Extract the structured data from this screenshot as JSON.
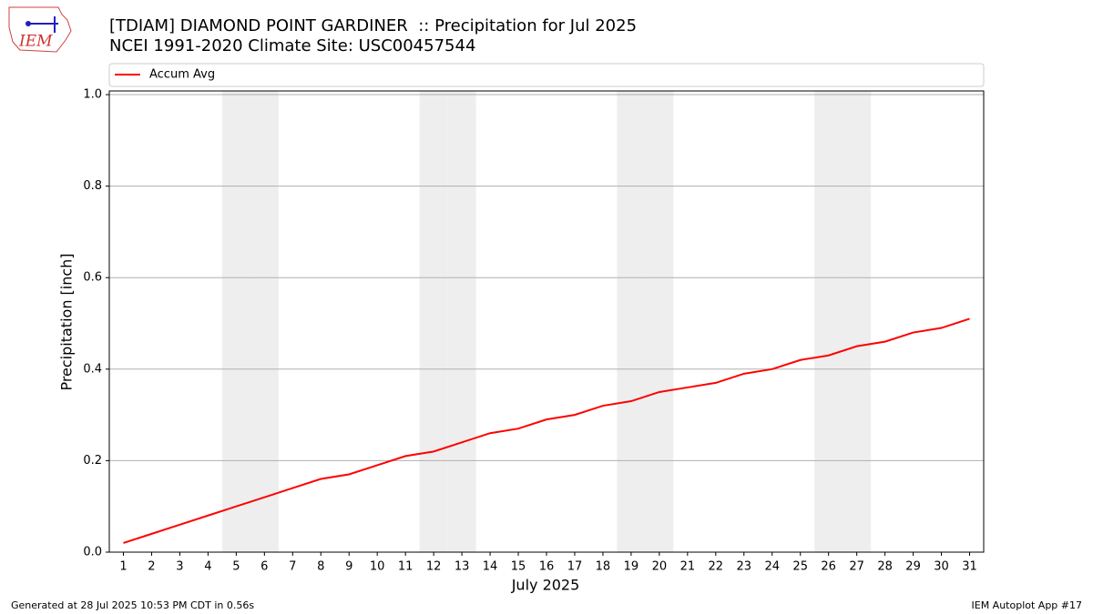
{
  "chart_data": {
    "type": "line",
    "title": "[TDIAM] DIAMOND POINT GARDINER  :: Precipitation for Jul 2025",
    "subtitle": "NCEI 1991-2020 Climate Site: USC00457544",
    "x_label": "July 2025",
    "y_label": "Precipitation [inch]",
    "x": [
      1,
      2,
      3,
      4,
      5,
      6,
      7,
      8,
      9,
      10,
      11,
      12,
      13,
      14,
      15,
      16,
      17,
      18,
      19,
      20,
      21,
      22,
      23,
      24,
      25,
      26,
      27,
      28,
      29,
      30,
      31
    ],
    "series": [
      {
        "name": "Accum Avg",
        "color": "#ff0000",
        "values": [
          0.02,
          0.04,
          0.06,
          0.08,
          0.1,
          0.12,
          0.14,
          0.16,
          0.17,
          0.19,
          0.21,
          0.22,
          0.24,
          0.26,
          0.27,
          0.29,
          0.3,
          0.32,
          0.33,
          0.35,
          0.36,
          0.37,
          0.39,
          0.4,
          0.42,
          0.43,
          0.45,
          0.46,
          0.48,
          0.49,
          0.51
        ]
      }
    ],
    "shaded_x": [
      5,
      6,
      12,
      13,
      19,
      20,
      26,
      27
    ],
    "shade_color": "#eeeeee",
    "xlim": [
      0.5,
      31.5
    ],
    "xticks": [
      1,
      2,
      3,
      4,
      5,
      6,
      7,
      8,
      9,
      10,
      11,
      12,
      13,
      14,
      15,
      16,
      17,
      18,
      19,
      20,
      21,
      22,
      23,
      24,
      25,
      26,
      27,
      28,
      29,
      30,
      31
    ],
    "ylim": [
      0,
      1.008
    ],
    "yticks": [
      {
        "value": 0,
        "label": "0.0"
      },
      {
        "value": 0.2,
        "label": "0.2"
      },
      {
        "value": 0.4,
        "label": "0.4"
      },
      {
        "value": 0.6,
        "label": "0.6"
      },
      {
        "value": 0.8,
        "label": "0.8"
      },
      {
        "value": 1,
        "label": "1.0"
      }
    ],
    "grid": true,
    "legend": "top"
  },
  "logo": "IEM",
  "footer": {
    "left": "Generated at 28 Jul 2025 10:53 PM CDT in 0.56s",
    "right": "IEM Autoplot App #17"
  }
}
